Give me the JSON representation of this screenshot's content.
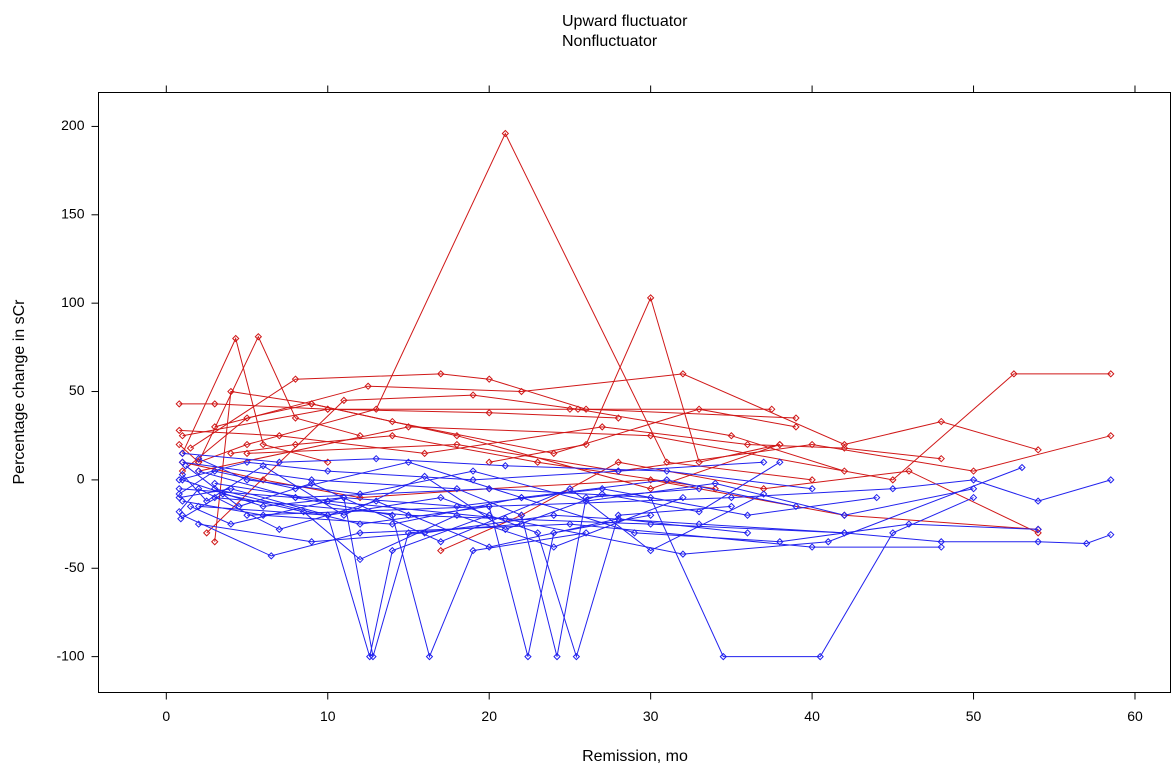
{
  "chart_data": {
    "type": "spaghetti",
    "legend": [
      "Upward fluctuator",
      "Nonfluctuator"
    ],
    "xlabel": "Remission, mo",
    "ylabel": "Percentage change in sCr",
    "xlim": [
      -4.2,
      62.2
    ],
    "ylim": [
      -120.3,
      219.2
    ],
    "xticks": [
      0,
      10,
      20,
      30,
      40,
      50,
      60
    ],
    "yticks": [
      -100,
      -50,
      0,
      50,
      100,
      150,
      200
    ],
    "groups": [
      {
        "name": "Upward fluctuator",
        "color": "#d01818",
        "lines": [
          {
            "x": [
              0.8,
              3,
              10,
              20,
              28
            ],
            "values": [
              43,
              43,
              40,
              38,
              35
            ]
          },
          {
            "x": [
              0.8,
              2,
              5.7,
              8,
              12
            ],
            "values": [
              20,
              10,
              81,
              35,
              25
            ]
          },
          {
            "x": [
              1,
              4.3,
              6,
              10
            ],
            "values": [
              15,
              80,
              20,
              10
            ]
          },
          {
            "x": [
              2,
              5,
              13,
              21,
              31,
              40
            ],
            "values": [
              10,
              20,
              40,
              196,
              10,
              0
            ]
          },
          {
            "x": [
              20,
              26,
              30,
              33,
              38
            ],
            "values": [
              10,
              20,
              103,
              10,
              20
            ]
          },
          {
            "x": [
              1.5,
              8,
              17,
              20,
              26,
              39
            ],
            "values": [
              18,
              57,
              60,
              57,
              40,
              35
            ]
          },
          {
            "x": [
              3,
              12.5,
              22,
              32,
              42,
              48,
              54
            ],
            "values": [
              30,
              53,
              50,
              60,
              20,
              33,
              17
            ]
          },
          {
            "x": [
              1,
              10,
              25,
              37.5
            ],
            "values": [
              25,
              40,
              40,
              40
            ]
          },
          {
            "x": [
              2,
              15,
              30,
              45,
              52.5,
              58.5
            ],
            "values": [
              5,
              30,
              25,
              0,
              60,
              60
            ]
          },
          {
            "x": [
              5,
              18,
              28,
              40,
              50,
              58.5
            ],
            "values": [
              15,
              20,
              5,
              20,
              5,
              25
            ]
          },
          {
            "x": [
              1,
              6,
              12,
              20,
              30,
              42,
              54
            ],
            "values": [
              10,
              0,
              -10,
              -5,
              0,
              -20,
              -28
            ]
          },
          {
            "x": [
              3,
              4,
              9,
              14,
              24,
              33,
              39
            ],
            "values": [
              -35,
              50,
              43,
              33,
              15,
              40,
              30
            ]
          },
          {
            "x": [
              0.8,
              7,
              16,
              27,
              36,
              42,
              48
            ],
            "values": [
              28,
              25,
              15,
              30,
              20,
              18,
              12
            ]
          },
          {
            "x": [
              2.5,
              11,
              19,
              25.5,
              35,
              42
            ],
            "values": [
              -30,
              45,
              48,
              40,
              25,
              5
            ]
          },
          {
            "x": [
              1,
              5,
              9,
              18,
              30,
              38
            ],
            "values": [
              5,
              35,
              43,
              25,
              -5,
              20
            ]
          },
          {
            "x": [
              4,
              8,
              14,
              23,
              34
            ],
            "values": [
              15,
              20,
              25,
              10,
              -5
            ]
          },
          {
            "x": [
              17,
              22,
              28,
              37,
              46,
              54
            ],
            "values": [
              -40,
              -20,
              10,
              -5,
              5,
              -30
            ]
          }
        ]
      },
      {
        "name": "Nonfluctuator",
        "color": "#2222ee",
        "lines": [
          {
            "x": [
              0.8,
              4,
              10,
              12.6,
              14,
              20
            ],
            "values": [
              -10,
              -5,
              -20,
              -100,
              -40,
              -20
            ]
          },
          {
            "x": [
              1,
              6,
              11,
              12.8,
              15,
              22
            ],
            "values": [
              0,
              -15,
              -10,
              -100,
              -30,
              -25
            ]
          },
          {
            "x": [
              2,
              8,
              14,
              16.3,
              19,
              26
            ],
            "values": [
              5,
              -10,
              -20,
              -100,
              -40,
              -30
            ]
          },
          {
            "x": [
              3,
              12,
              20,
              22.4,
              24,
              30
            ],
            "values": [
              -5,
              -25,
              -15,
              -100,
              -30,
              -20
            ]
          },
          {
            "x": [
              1,
              9,
              18,
              22,
              24.2,
              26,
              33
            ],
            "values": [
              10,
              0,
              -5,
              -20,
              -100,
              -10,
              -5
            ]
          },
          {
            "x": [
              2,
              10,
              17,
              23,
              25.4,
              28,
              35
            ],
            "values": [
              -15,
              -20,
              -10,
              -30,
              -100,
              -20,
              -15
            ]
          },
          {
            "x": [
              0.8,
              8,
              20,
              30,
              34.5,
              40.5,
              45,
              50
            ],
            "values": [
              -5,
              -10,
              -5,
              -10,
              -100,
              -100,
              -30,
              -10
            ]
          },
          {
            "x": [
              5,
              20,
              35,
              45,
              50,
              54,
              58.5
            ],
            "values": [
              -20,
              -15,
              -10,
              -5,
              0,
              -12,
              0
            ]
          },
          {
            "x": [
              3,
              15,
              30,
              42,
              48,
              54,
              57,
              58.5
            ],
            "values": [
              -10,
              -20,
              -25,
              -30,
              -35,
              -35,
              -36,
              -31
            ]
          },
          {
            "x": [
              1,
              6.5,
              12,
              25,
              40,
              48
            ],
            "values": [
              -20,
              -43,
              -30,
              -25,
              -38,
              -38
            ]
          },
          {
            "x": [
              0.8,
              5,
              10,
              19,
              28,
              37
            ],
            "values": [
              0,
              10,
              5,
              0,
              5,
              10
            ]
          },
          {
            "x": [
              1,
              7,
              13,
              21,
              31,
              40
            ],
            "values": [
              15,
              10,
              12,
              8,
              5,
              -5
            ]
          },
          {
            "x": [
              2,
              9,
              16,
              24,
              33,
              42
            ],
            "values": [
              -25,
              -35,
              -30,
              -20,
              -25,
              -30
            ]
          },
          {
            "x": [
              1.5,
              4,
              11,
              18,
              27,
              36,
              44
            ],
            "values": [
              -15,
              -25,
              -10,
              -15,
              -5,
              -20,
              -10
            ]
          },
          {
            "x": [
              0.8,
              3,
              8,
              15,
              22,
              31,
              39
            ],
            "values": [
              -8,
              5,
              -5,
              10,
              -10,
              0,
              -15
            ]
          },
          {
            "x": [
              1,
              6,
              14,
              22,
              29,
              38,
              46,
              54
            ],
            "values": [
              -12,
              -20,
              -25,
              -10,
              -30,
              -35,
              -25,
              -28
            ]
          },
          {
            "x": [
              2,
              5,
              12,
              19,
              26,
              34,
              42,
              50
            ],
            "values": [
              12,
              0,
              -8,
              5,
              -12,
              -2,
              -20,
              -5
            ]
          },
          {
            "x": [
              0.8,
              2,
              7,
              13,
              20,
              28,
              36
            ],
            "values": [
              -18,
              -5,
              -28,
              -12,
              -38,
              -22,
              -30
            ]
          },
          {
            "x": [
              3,
              10,
              21,
              32,
              41,
              53
            ],
            "values": [
              -2,
              -12,
              -22,
              -42,
              -35,
              7
            ]
          },
          {
            "x": [
              1.2,
              4.5,
              9,
              17,
              25,
              30,
              37
            ],
            "values": [
              8,
              -15,
              -2,
              -35,
              -5,
              -40,
              -8
            ]
          },
          {
            "x": [
              0.9,
              3.5,
              8.5,
              12,
              18,
              24,
              32
            ],
            "values": [
              -22,
              -8,
              -18,
              -45,
              -20,
              -38,
              -10
            ]
          },
          {
            "x": [
              1,
              2.5,
              6,
              11,
              16,
              21,
              27,
              33,
              38
            ],
            "values": [
              3,
              -12,
              8,
              -20,
              2,
              -28,
              -8,
              -18,
              10
            ]
          }
        ]
      }
    ]
  }
}
